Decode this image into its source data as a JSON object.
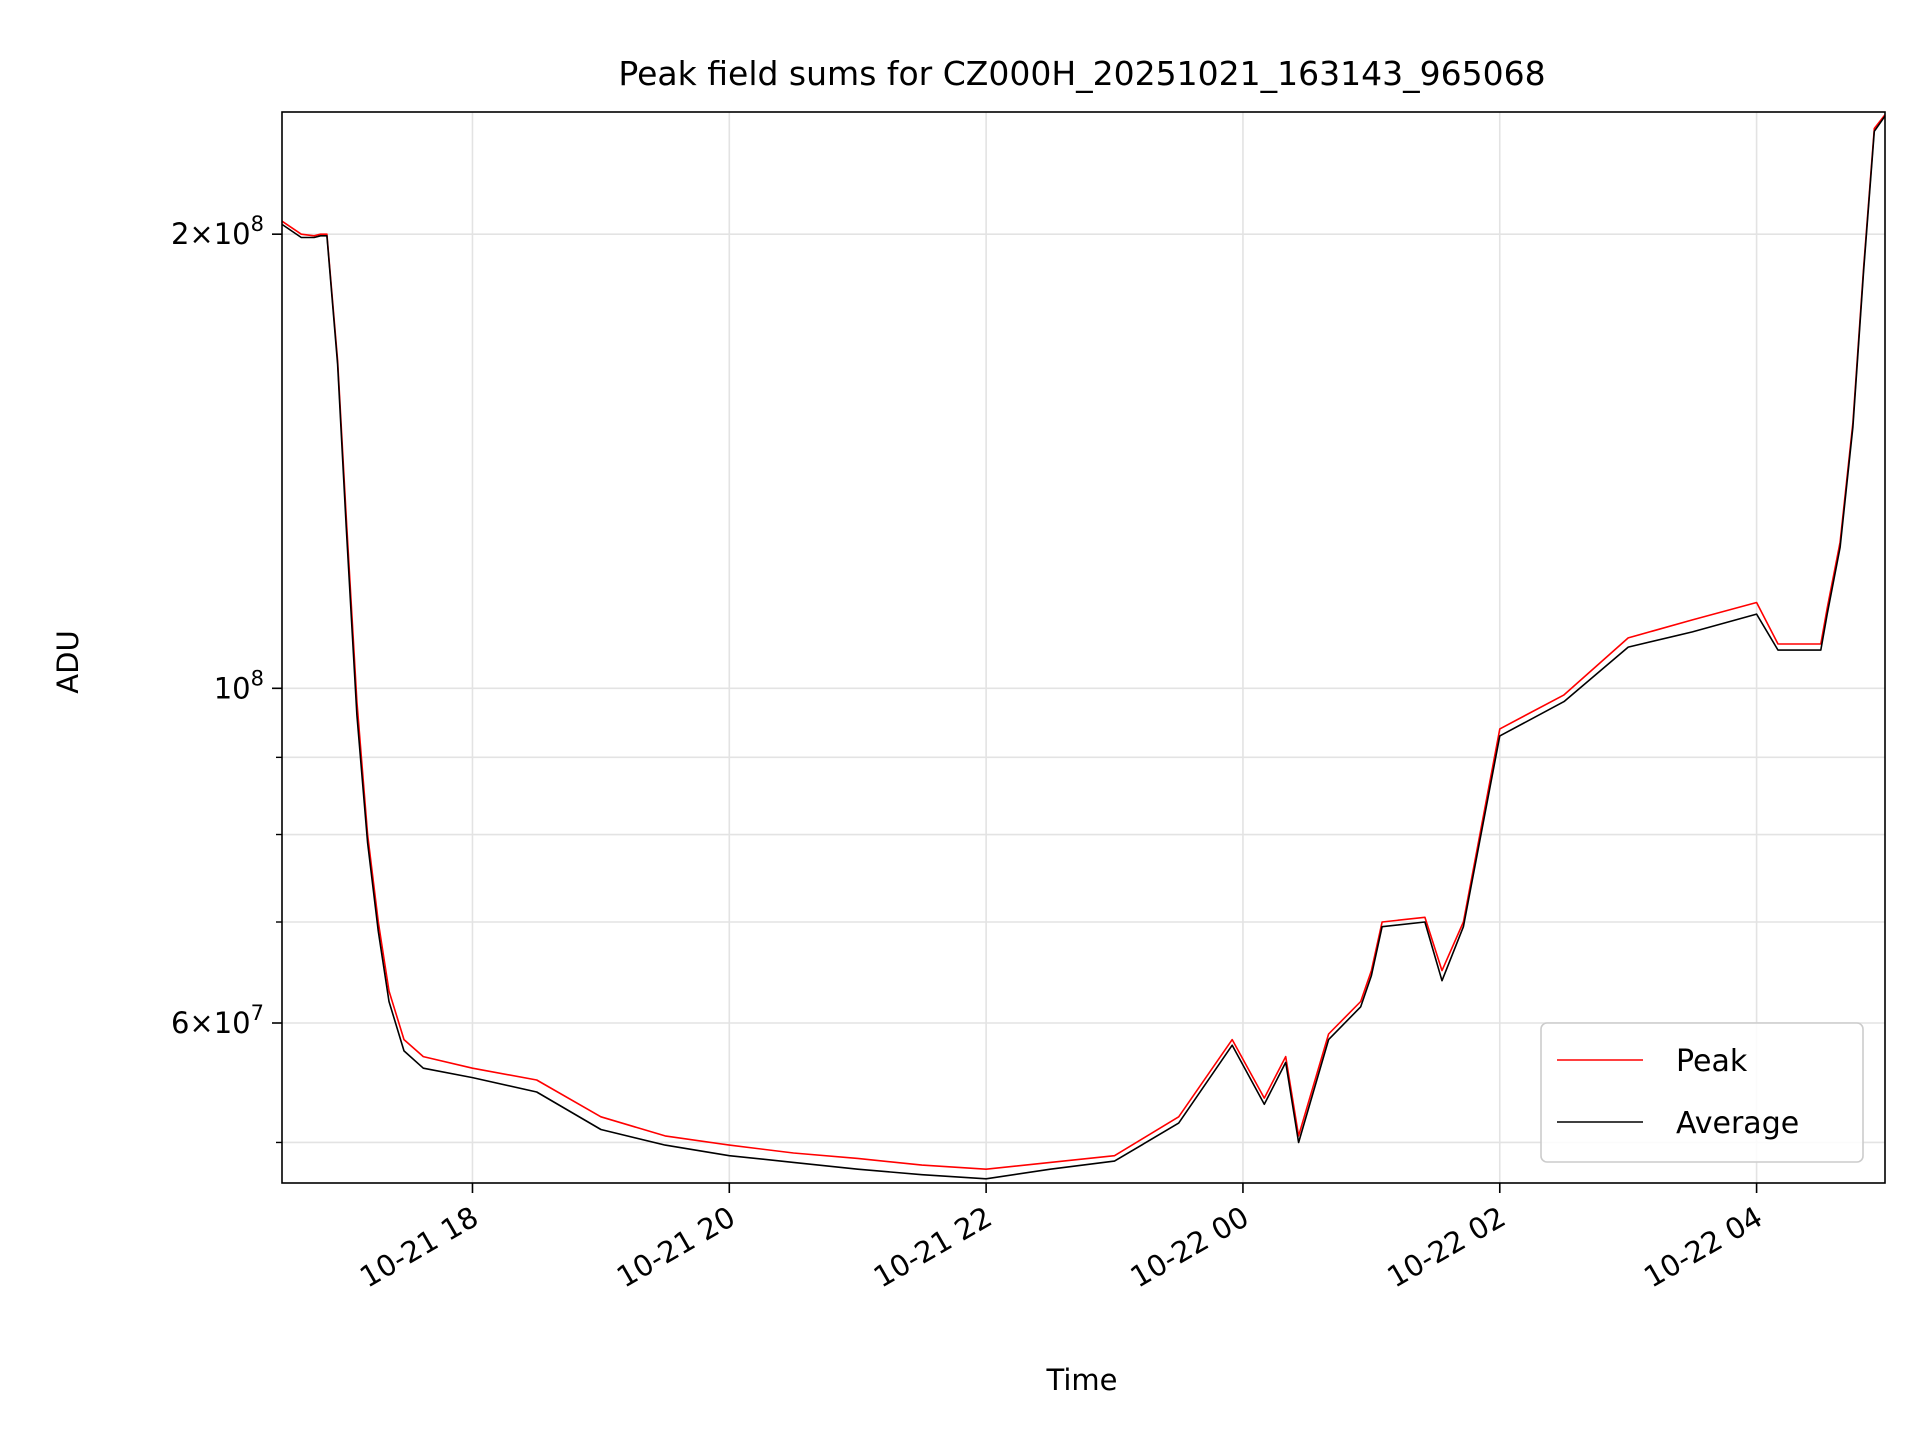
{
  "chart_data": {
    "type": "line",
    "title": "Peak field sums for CZ000H_20251021_163143_965068",
    "xlabel": "Time",
    "ylabel": "ADU",
    "yscale": "log",
    "xlim": [
      "2025-10-21 16:31",
      "2025-10-22 05:00"
    ],
    "ylim": [
      47000000,
      241000000
    ],
    "grid": true,
    "legend_position": "lower-right",
    "x_ticks": [
      {
        "t": "2025-10-21 18:00",
        "label": "10-21 18"
      },
      {
        "t": "2025-10-21 20:00",
        "label": "10-21 20"
      },
      {
        "t": "2025-10-21 22:00",
        "label": "10-21 22"
      },
      {
        "t": "2025-10-22 00:00",
        "label": "10-22 00"
      },
      {
        "t": "2025-10-22 02:00",
        "label": "10-22 02"
      },
      {
        "t": "2025-10-22 04:00",
        "label": "10-22 04"
      }
    ],
    "y_ticks": [
      {
        "value": 60000000,
        "base": "6",
        "exp": "7"
      },
      {
        "value": 100000000,
        "base": "10",
        "exp": "8"
      },
      {
        "value": 200000000,
        "base": "2",
        "exp": "8"
      }
    ],
    "y_minor_ticks": [
      50000000,
      70000000,
      80000000,
      90000000
    ],
    "series": [
      {
        "name": "Peak",
        "color": "#ff0000",
        "points": [
          [
            "2025-10-21 16:31",
            204000000
          ],
          [
            "2025-10-21 16:40",
            200000000
          ],
          [
            "2025-10-21 16:46",
            199500000
          ],
          [
            "2025-10-21 16:49",
            200000000
          ],
          [
            "2025-10-21 16:52",
            200000000
          ],
          [
            "2025-10-21 16:57",
            165000000
          ],
          [
            "2025-10-21 17:01",
            130000000
          ],
          [
            "2025-10-21 17:06",
            98000000
          ],
          [
            "2025-10-21 17:11",
            80000000
          ],
          [
            "2025-10-21 17:16",
            70000000
          ],
          [
            "2025-10-21 17:21",
            63000000
          ],
          [
            "2025-10-21 17:28",
            58500000
          ],
          [
            "2025-10-21 17:37",
            57000000
          ],
          [
            "2025-10-21 18:00",
            56000000
          ],
          [
            "2025-10-21 18:30",
            55000000
          ],
          [
            "2025-10-21 19:00",
            52000000
          ],
          [
            "2025-10-21 19:30",
            50500000
          ],
          [
            "2025-10-21 20:00",
            49800000
          ],
          [
            "2025-10-21 20:30",
            49200000
          ],
          [
            "2025-10-21 21:00",
            48800000
          ],
          [
            "2025-10-21 21:30",
            48300000
          ],
          [
            "2025-10-21 22:00",
            48000000
          ],
          [
            "2025-10-21 22:30",
            48500000
          ],
          [
            "2025-10-21 23:00",
            49000000
          ],
          [
            "2025-10-21 23:30",
            52000000
          ],
          [
            "2025-10-21 23:55",
            58500000
          ],
          [
            "2025-10-22 00:10",
            53500000
          ],
          [
            "2025-10-22 00:20",
            57000000
          ],
          [
            "2025-10-22 00:26",
            50500000
          ],
          [
            "2025-10-22 00:40",
            59000000
          ],
          [
            "2025-10-22 00:55",
            62000000
          ],
          [
            "2025-10-22 01:00",
            65000000
          ],
          [
            "2025-10-22 01:05",
            70000000
          ],
          [
            "2025-10-22 01:25",
            70500000
          ],
          [
            "2025-10-22 01:33",
            65000000
          ],
          [
            "2025-10-22 01:43",
            70000000
          ],
          [
            "2025-10-22 02:00",
            94000000
          ],
          [
            "2025-10-22 02:30",
            99000000
          ],
          [
            "2025-10-22 03:00",
            108000000
          ],
          [
            "2025-10-22 03:30",
            111000000
          ],
          [
            "2025-10-22 04:00",
            114000000
          ],
          [
            "2025-10-22 04:10",
            107000000
          ],
          [
            "2025-10-22 04:30",
            107000000
          ],
          [
            "2025-10-22 04:33",
            113000000
          ],
          [
            "2025-10-22 04:39",
            125000000
          ],
          [
            "2025-10-22 04:45",
            150000000
          ],
          [
            "2025-10-22 04:50",
            190000000
          ],
          [
            "2025-10-22 04:55",
            235000000
          ],
          [
            "2025-10-22 05:00",
            240000000
          ]
        ]
      },
      {
        "name": "Average",
        "color": "#000000",
        "points": [
          [
            "2025-10-21 16:31",
            203000000
          ],
          [
            "2025-10-21 16:40",
            199000000
          ],
          [
            "2025-10-21 16:46",
            199000000
          ],
          [
            "2025-10-21 16:49",
            199500000
          ],
          [
            "2025-10-21 16:52",
            199500000
          ],
          [
            "2025-10-21 16:57",
            164000000
          ],
          [
            "2025-10-21 17:01",
            128000000
          ],
          [
            "2025-10-21 17:06",
            96000000
          ],
          [
            "2025-10-21 17:11",
            79000000
          ],
          [
            "2025-10-21 17:16",
            69000000
          ],
          [
            "2025-10-21 17:21",
            62000000
          ],
          [
            "2025-10-21 17:28",
            57500000
          ],
          [
            "2025-10-21 17:37",
            56000000
          ],
          [
            "2025-10-21 18:00",
            55200000
          ],
          [
            "2025-10-21 18:30",
            54000000
          ],
          [
            "2025-10-21 19:00",
            51000000
          ],
          [
            "2025-10-21 19:30",
            49800000
          ],
          [
            "2025-10-21 20:00",
            49000000
          ],
          [
            "2025-10-21 20:30",
            48500000
          ],
          [
            "2025-10-21 21:00",
            48000000
          ],
          [
            "2025-10-21 21:30",
            47600000
          ],
          [
            "2025-10-21 22:00",
            47300000
          ],
          [
            "2025-10-21 22:30",
            48000000
          ],
          [
            "2025-10-21 23:00",
            48600000
          ],
          [
            "2025-10-21 23:30",
            51500000
          ],
          [
            "2025-10-21 23:55",
            58000000
          ],
          [
            "2025-10-22 00:10",
            53000000
          ],
          [
            "2025-10-22 00:20",
            56500000
          ],
          [
            "2025-10-22 00:26",
            50000000
          ],
          [
            "2025-10-22 00:40",
            58500000
          ],
          [
            "2025-10-22 00:55",
            61500000
          ],
          [
            "2025-10-22 01:00",
            64500000
          ],
          [
            "2025-10-22 01:05",
            69500000
          ],
          [
            "2025-10-22 01:25",
            70000000
          ],
          [
            "2025-10-22 01:33",
            64000000
          ],
          [
            "2025-10-22 01:43",
            69500000
          ],
          [
            "2025-10-22 02:00",
            93000000
          ],
          [
            "2025-10-22 02:30",
            98000000
          ],
          [
            "2025-10-22 03:00",
            106500000
          ],
          [
            "2025-10-22 03:30",
            109000000
          ],
          [
            "2025-10-22 04:00",
            112000000
          ],
          [
            "2025-10-22 04:10",
            106000000
          ],
          [
            "2025-10-22 04:30",
            106000000
          ],
          [
            "2025-10-22 04:33",
            112000000
          ],
          [
            "2025-10-22 04:39",
            124000000
          ],
          [
            "2025-10-22 04:45",
            149000000
          ],
          [
            "2025-10-22 04:50",
            189000000
          ],
          [
            "2025-10-22 04:55",
            234000000
          ],
          [
            "2025-10-22 05:00",
            239500000
          ]
        ]
      }
    ]
  }
}
